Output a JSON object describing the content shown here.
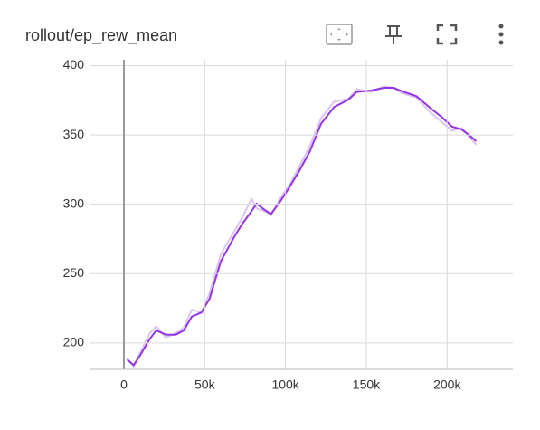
{
  "chart_data": {
    "type": "line",
    "title": "rollout/ep_rew_mean",
    "x": [
      2000,
      6000,
      10000,
      16000,
      20000,
      26000,
      32000,
      37000,
      42000,
      48000,
      53000,
      60000,
      68000,
      73000,
      79000,
      82000,
      87000,
      91000,
      97000,
      102000,
      108000,
      115000,
      122000,
      130000,
      139000,
      144000,
      153000,
      161000,
      167000,
      172000,
      181000,
      189000,
      197000,
      203000,
      209000,
      214000,
      218000
    ],
    "series": [
      {
        "color": "#dcc3f5",
        "values": [
          189,
          183,
          193,
          207,
          212,
          204,
          207,
          211,
          224,
          222,
          236,
          264,
          280,
          290,
          304,
          297,
          295,
          292,
          305,
          313,
          326,
          342,
          362,
          374,
          376,
          383,
          381,
          385,
          384,
          380,
          377,
          367,
          359,
          353,
          355,
          348,
          343
        ]
      },
      {
        "color": "#9334e6",
        "values": [
          188,
          184,
          191,
          203,
          209,
          206,
          206,
          209,
          219,
          222,
          232,
          259,
          276,
          285.5,
          295,
          300.5,
          296,
          293,
          302.5,
          311.5,
          323,
          338,
          358,
          370,
          375.5,
          381,
          382,
          384,
          384,
          381.5,
          378,
          370,
          362.5,
          356,
          354,
          349.5,
          345.5
        ]
      }
    ],
    "xlim": [
      -20700,
      240700
    ],
    "ylim": [
      181,
      400.3
    ],
    "xticks": [
      0,
      {
        "value": 50000,
        "label": "50k"
      },
      {
        "value": 100000,
        "label": "100k"
      },
      {
        "value": 150000,
        "label": "150k"
      },
      {
        "value": 200000,
        "label": "200k"
      }
    ],
    "yticks": [
      200,
      250,
      300,
      350,
      400
    ],
    "grid": true
  }
}
